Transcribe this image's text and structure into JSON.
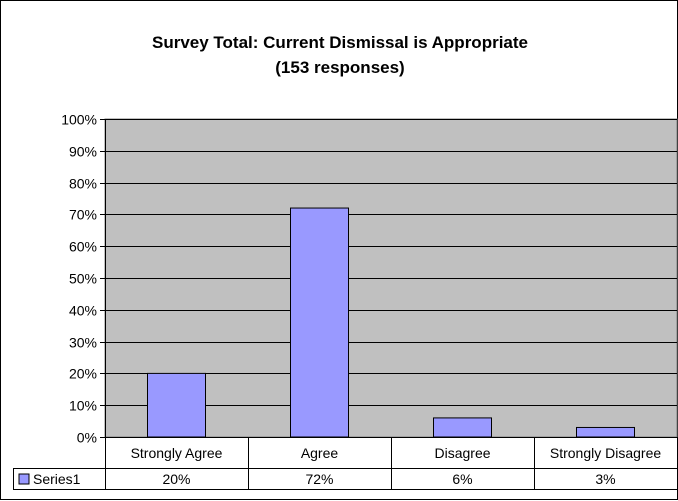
{
  "chart_data": {
    "type": "bar",
    "title": "Survey Total:  Current Dismissal is Appropriate",
    "subtitle": "(153 responses)",
    "categories": [
      "Strongly Agree",
      "Agree",
      "Disagree",
      "Strongly Disagree"
    ],
    "series": [
      {
        "name": "Series1",
        "values": [
          20,
          72,
          6,
          3
        ],
        "value_labels": [
          "20%",
          "72%",
          "6%",
          "3%"
        ]
      }
    ],
    "ylim": [
      0,
      100
    ],
    "yticks": [
      0,
      10,
      20,
      30,
      40,
      50,
      60,
      70,
      80,
      90,
      100
    ],
    "ytick_labels": [
      "0%",
      "10%",
      "20%",
      "30%",
      "40%",
      "50%",
      "60%",
      "70%",
      "80%",
      "90%",
      "100%"
    ],
    "grid": true,
    "legend": "data-table-left",
    "colors": {
      "plot_background": "#c0c0c0",
      "bar_fill": "#9999ff",
      "bar_stroke": "#000000",
      "gridline": "#000000"
    }
  }
}
